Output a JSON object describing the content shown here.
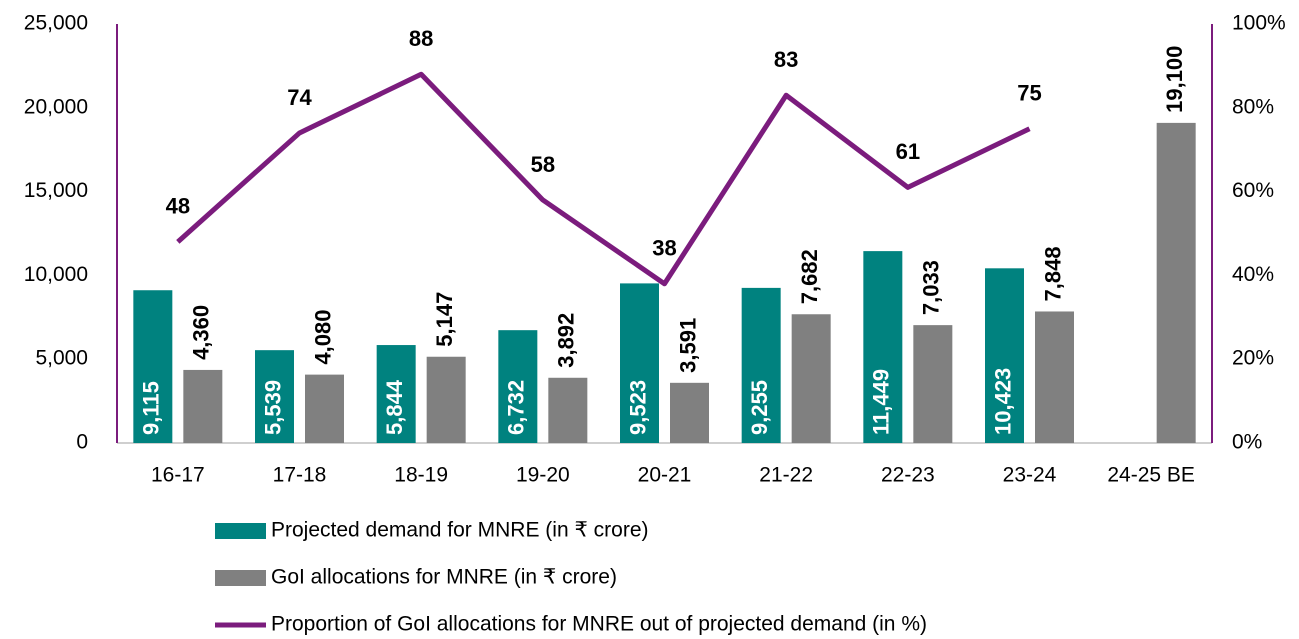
{
  "chart_data": {
    "type": "bar",
    "categories": [
      "16-17",
      "17-18",
      "18-19",
      "19-20",
      "20-21",
      "21-22",
      "22-23",
      "23-24",
      "24-25 BE"
    ],
    "series": [
      {
        "name": "Projected demand for MNRE (in ₹ crore)",
        "type": "bar",
        "color": "#00827f",
        "values": [
          9115,
          5539,
          5844,
          6732,
          9523,
          9255,
          11449,
          10423,
          null
        ],
        "value_labels": [
          "9,115",
          "5,539",
          "5,844",
          "6,732",
          "9,523",
          "9,255",
          "11,449",
          "10,423",
          null
        ]
      },
      {
        "name": "GoI allocations for MNRE  (in ₹ crore)",
        "type": "bar",
        "color": "#808080",
        "values": [
          4360,
          4080,
          5147,
          3892,
          3591,
          7682,
          7033,
          7848,
          19100
        ],
        "value_labels": [
          "4,360",
          "4,080",
          "5,147",
          "3,892",
          "3,591",
          "7,682",
          "7,033",
          "7,848",
          "19,100"
        ]
      },
      {
        "name": "Proportion of GoI allocations for MNRE out of projected demand (in %)",
        "type": "line",
        "axis": "y2",
        "color": "#7b1c7d",
        "values": [
          48,
          74,
          88,
          58,
          38,
          83,
          61,
          75,
          null
        ]
      }
    ],
    "ylim": [
      0,
      25000
    ],
    "yticks": [
      0,
      {
        "value": 5000,
        "label": "5,000"
      },
      {
        "value": 10000,
        "label": "10,000"
      },
      {
        "value": 15000,
        "label": "15,000"
      },
      {
        "value": 20000,
        "label": "20,000"
      },
      {
        "value": 25000,
        "label": "25,000"
      }
    ],
    "y2lim": [
      0,
      100
    ],
    "y2ticks": [
      {
        "value": 0,
        "label": "0%"
      },
      {
        "value": 20,
        "label": "20%"
      },
      {
        "value": 40,
        "label": "40%"
      },
      {
        "value": 60,
        "label": "60%"
      },
      {
        "value": 80,
        "label": "80%"
      },
      {
        "value": 100,
        "label": "100%"
      }
    ],
    "legend": "bottom"
  }
}
